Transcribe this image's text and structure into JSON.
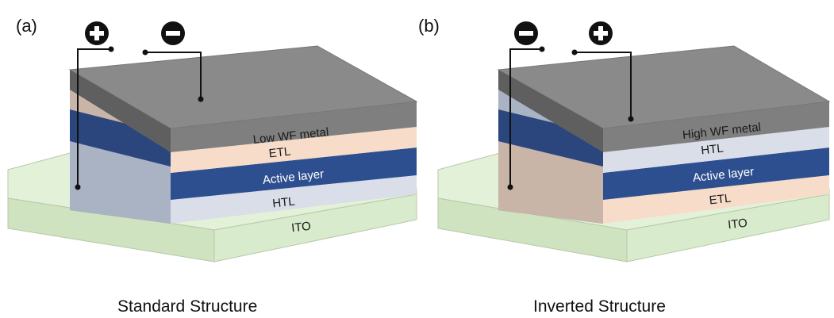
{
  "panels": [
    {
      "letter": "(a)",
      "caption": "Standard Structure",
      "terminals": {
        "left": "+",
        "right": "−"
      },
      "layers": [
        {
          "label": "Low WF metal",
          "color": "#7f7f7f",
          "text_color": "#1a1a1a"
        },
        {
          "label": "ETL",
          "color": "#f7dcc9",
          "text_color": "#1a1a1a"
        },
        {
          "label": "Active layer",
          "color": "#2e4f8f",
          "text_color": "#ffffff"
        },
        {
          "label": "HTL",
          "color": "#d9dee9",
          "text_color": "#1a1a1a"
        }
      ],
      "substrate": {
        "label": "ITO",
        "color": "#d8ebcc"
      }
    },
    {
      "letter": "(b)",
      "caption": "Inverted Structure",
      "terminals": {
        "left": "−",
        "right": "+"
      },
      "layers": [
        {
          "label": "High WF metal",
          "color": "#7f7f7f",
          "text_color": "#1a1a1a"
        },
        {
          "label": "HTL",
          "color": "#d9dee9",
          "text_color": "#1a1a1a"
        },
        {
          "label": "Active layer",
          "color": "#2e4f8f",
          "text_color": "#ffffff"
        },
        {
          "label": "ETL",
          "color": "#f7dcc9",
          "text_color": "#1a1a1a"
        }
      ],
      "substrate": {
        "label": "ITO",
        "color": "#d8ebcc"
      }
    }
  ]
}
